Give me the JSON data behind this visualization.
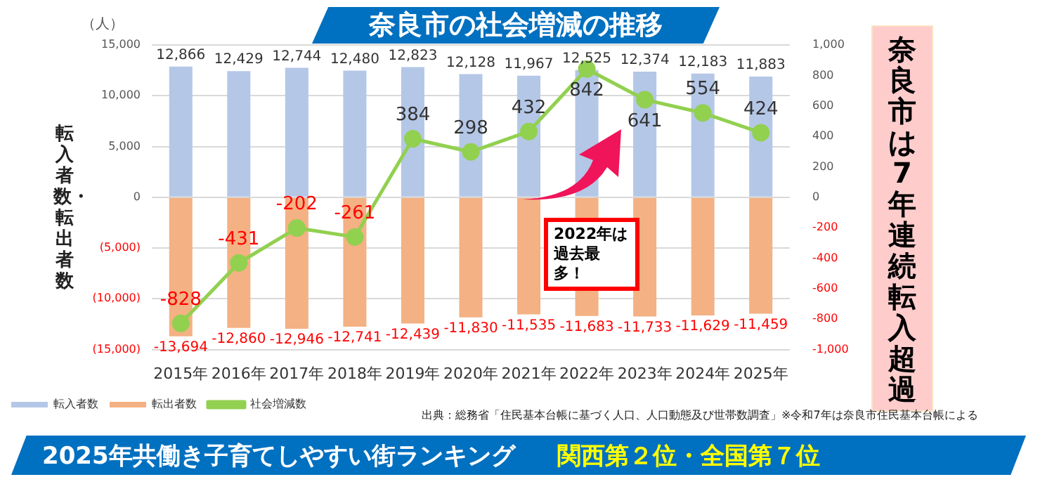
{
  "chart_data": {
    "type": "bar",
    "title": "奈良市の社会増減の推移",
    "ylabel": "転入者数・転出者数",
    "categories": [
      "2015年",
      "2016年",
      "2017年",
      "2018年",
      "2019年",
      "2020年",
      "2021年",
      "2022年",
      "2023年",
      "2024年",
      "2025年"
    ],
    "stacked": true,
    "grid": "y",
    "legend": "bottom left",
    "marker": "circle",
    "line_style": "solid",
    "series": [
      {
        "name": "転入者数",
        "color": "#b4c7e7",
        "values": [
          12866,
          12429,
          12744,
          12480,
          12823,
          12128,
          11967,
          12525,
          12374,
          12183,
          11883
        ],
        "value_labels": [
          "12,866",
          "12,429",
          "12,744",
          "12,480",
          "12,823",
          "12,128",
          "11,967",
          "12,525",
          "12,374",
          "12,183",
          "11,883"
        ]
      },
      {
        "name": "転出者数",
        "color": "#f4b183",
        "values": [
          -13694,
          -12860,
          -12946,
          -12741,
          -12439,
          -11830,
          -11535,
          -11683,
          -11733,
          -11629,
          -11459
        ],
        "value_labels": [
          "-13,694",
          "-12,860",
          "-12,946",
          "-12,741",
          "-12,439",
          "-11,830",
          "-11,535",
          "-11,683",
          "-11,733",
          "-11,629",
          "-11,459"
        ]
      },
      {
        "name": "社会増減数",
        "type": "line",
        "axis": "y2",
        "color": "#92d050",
        "values": [
          -828,
          -431,
          -202,
          -261,
          384,
          298,
          432,
          842,
          641,
          554,
          424
        ],
        "value_labels": [
          "-828",
          "-431",
          "-202",
          "-261",
          "384",
          "298",
          "432",
          "842",
          "641",
          "554",
          "424"
        ]
      }
    ],
    "ylim": [
      -15000,
      15000
    ],
    "yticks": [
      {
        "value": -15000,
        "label": "(15,000)"
      },
      {
        "value": -10000,
        "label": "(10,000)"
      },
      {
        "value": -5000,
        "label": "(5,000)"
      },
      0,
      {
        "value": 5000,
        "label": "5,000"
      },
      {
        "value": 10000,
        "label": "10,000"
      },
      {
        "value": 15000,
        "label": "15,000"
      }
    ],
    "y2lim": [
      -1000,
      1000
    ],
    "y2ticks": [
      {
        "value": -1000,
        "label": "-1,000"
      },
      -800,
      -600,
      -400,
      -200,
      0,
      200,
      400,
      600,
      800,
      {
        "value": 1000,
        "label": "1,000"
      }
    ],
    "annotations": [
      "（人）",
      "2022年は過去最多！",
      "奈良市は7年連続転入超過",
      "出典：総務省「住民基本台帳に基づく人口、人口動態及び世帯数調査」※令和7年は奈良市住民基本台帳による",
      "2025年共働き子育てしやすい街ランキング",
      "関西第２位・全国第７位"
    ]
  }
}
